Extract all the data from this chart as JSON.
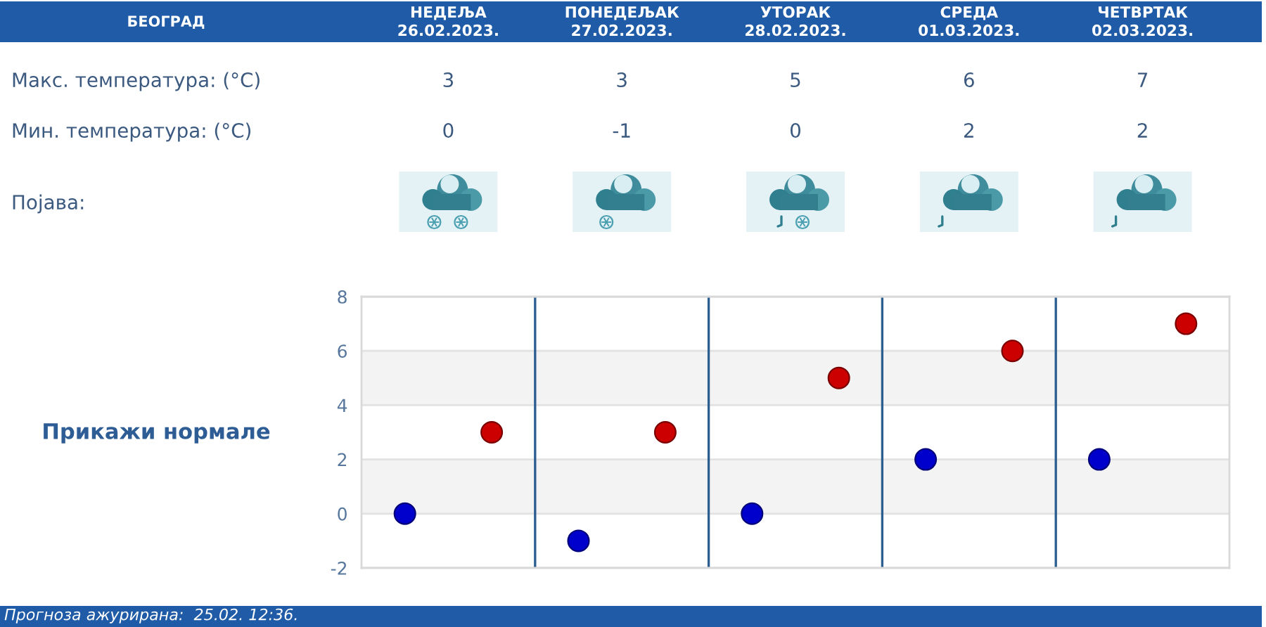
{
  "chart_data": {
    "type": "scatter",
    "title": "БЕОГРАД",
    "categories": [
      null,
      null,
      null,
      null,
      null
    ],
    "series": [
      {
        "color": "#cc0000",
        "values": [
          3,
          3,
          5,
          6,
          7
        ]
      },
      {
        "color": "#0000cc",
        "values": [
          0,
          -1,
          0,
          2,
          2
        ]
      }
    ],
    "ylim": [
      -2,
      8
    ],
    "yticks": [
      -2,
      0,
      2,
      4,
      6,
      8
    ],
    "grid": "y",
    "bands": [
      {
        "axis": "y",
        "from": 0,
        "to": 2,
        "color": "#f3f3f3"
      },
      {
        "axis": "y",
        "from": 4,
        "to": 6,
        "color": "#f3f3f3"
      }
    ],
    "marker": "circle",
    "data_labels": true,
    "annotations": [
      "НЕДЕЉА\n26.02.2023.",
      "ПОНЕДЕЉАК\n27.02.2023.",
      "УТОРАК\n28.02.2023.",
      "СРЕДА\n01.03.2023.",
      "ЧЕТВРТАК\n02.03.2023.",
      "Макс. температура: (°C)",
      "Мин. температура: (°C)",
      "Појава:",
      "Прикажи нормале",
      "Прогноза ажурирана:  25.02. 12:36."
    ]
  }
}
